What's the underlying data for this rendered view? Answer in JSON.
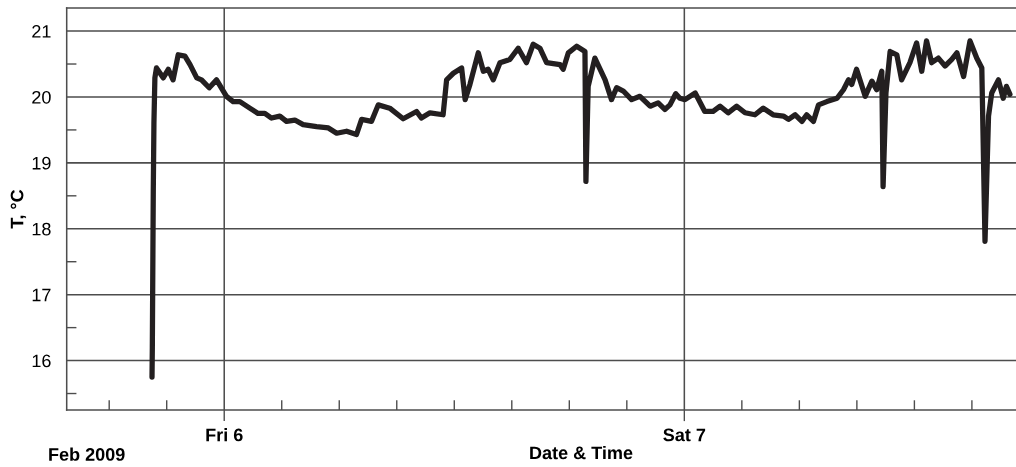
{
  "chart_data": {
    "type": "line",
    "xlabel": "Date & Time",
    "ylabel": "T, °C",
    "annotations": [
      "Feb 2009"
    ],
    "x": [
      "2009-02-05T20:14",
      "2009-02-05T20:15",
      "2009-02-05T20:18",
      "2009-02-05T20:20",
      "2009-02-05T20:23",
      "2009-02-05T20:28",
      "2009-02-05T20:49",
      "2009-02-05T21:05",
      "2009-02-05T21:20",
      "2009-02-05T21:36",
      "2009-02-05T21:57",
      "2009-02-05T22:13",
      "2009-02-05T22:34",
      "2009-02-05T22:49",
      "2009-02-05T23:13",
      "2009-02-05T23:36",
      "2009-02-06T00:07",
      "2009-02-06T00:28",
      "2009-02-06T00:49",
      "2009-02-06T01:20",
      "2009-02-06T01:46",
      "2009-02-06T02:07",
      "2009-02-06T02:28",
      "2009-02-06T02:54",
      "2009-02-06T03:15",
      "2009-02-06T03:41",
      "2009-02-06T04:07",
      "2009-02-06T04:49",
      "2009-02-06T05:26",
      "2009-02-06T05:52",
      "2009-02-06T06:23",
      "2009-02-06T06:54",
      "2009-02-06T07:10",
      "2009-02-06T07:41",
      "2009-02-06T08:02",
      "2009-02-06T08:38",
      "2009-02-06T09:20",
      "2009-02-06T10:02",
      "2009-02-06T10:17",
      "2009-02-06T10:44",
      "2009-02-06T11:25",
      "2009-02-06T11:36",
      "2009-02-06T11:57",
      "2009-02-06T12:23",
      "2009-02-06T12:34",
      "2009-02-06T12:49",
      "2009-02-06T13:15",
      "2009-02-06T13:31",
      "2009-02-06T13:46",
      "2009-02-06T14:02",
      "2009-02-06T14:23",
      "2009-02-06T14:54",
      "2009-02-06T15:20",
      "2009-02-06T15:46",
      "2009-02-06T16:07",
      "2009-02-06T16:28",
      "2009-02-06T16:49",
      "2009-02-06T17:31",
      "2009-02-06T17:41",
      "2009-02-06T17:57",
      "2009-02-06T18:23",
      "2009-02-06T18:49",
      "2009-02-06T18:52",
      "2009-02-06T18:59",
      "2009-02-06T19:20",
      "2009-02-06T19:52",
      "2009-02-06T20:12",
      "2009-02-06T20:28",
      "2009-02-06T20:49",
      "2009-02-06T21:15",
      "2009-02-06T21:41",
      "2009-02-06T22:13",
      "2009-02-06T22:38",
      "2009-02-06T22:59",
      "2009-02-06T23:15",
      "2009-02-06T23:33",
      "2009-02-06T23:46",
      "2009-02-07T00:02",
      "2009-02-07T00:34",
      "2009-02-07T01:04",
      "2009-02-07T01:30",
      "2009-02-07T01:52",
      "2009-02-07T02:17",
      "2009-02-07T02:44",
      "2009-02-07T03:10",
      "2009-02-07T03:41",
      "2009-02-07T04:07",
      "2009-02-07T04:38",
      "2009-02-07T05:10",
      "2009-02-07T05:26",
      "2009-02-07T05:47",
      "2009-02-07T06:08",
      "2009-02-07T06:23",
      "2009-02-07T06:44",
      "2009-02-07T07:00",
      "2009-02-07T07:26",
      "2009-02-07T07:58",
      "2009-02-07T08:18",
      "2009-02-07T08:34",
      "2009-02-07T08:44",
      "2009-02-07T08:59",
      "2009-02-07T09:26",
      "2009-02-07T09:47",
      "2009-02-07T10:02",
      "2009-02-07T10:18",
      "2009-02-07T10:22",
      "2009-02-07T10:31",
      "2009-02-07T10:44",
      "2009-02-07T11:05",
      "2009-02-07T11:20",
      "2009-02-07T11:46",
      "2009-02-07T12:07",
      "2009-02-07T12:23",
      "2009-02-07T12:38",
      "2009-02-07T12:54",
      "2009-02-07T13:15",
      "2009-02-07T13:36",
      "2009-02-07T13:57",
      "2009-02-07T14:13",
      "2009-02-07T14:34",
      "2009-02-07T14:54",
      "2009-02-07T15:15",
      "2009-02-07T15:31",
      "2009-02-07T15:41",
      "2009-02-07T15:52",
      "2009-02-07T16:02",
      "2009-02-07T16:23",
      "2009-02-07T16:38",
      "2009-02-07T16:48",
      "2009-02-07T16:59"
    ],
    "series": [
      {
        "color": "#231f20",
        "values": [
          15.75,
          16.2,
          18.59,
          19.6,
          20.29,
          20.44,
          20.29,
          20.42,
          20.26,
          20.64,
          20.62,
          20.49,
          20.29,
          20.26,
          20.14,
          20.26,
          20.01,
          19.93,
          19.93,
          19.83,
          19.75,
          19.75,
          19.68,
          19.71,
          19.63,
          19.65,
          19.58,
          19.55,
          19.53,
          19.45,
          19.48,
          19.43,
          19.66,
          19.63,
          19.88,
          19.83,
          19.67,
          19.78,
          19.68,
          19.76,
          19.73,
          20.26,
          20.36,
          20.44,
          19.96,
          20.19,
          20.67,
          20.39,
          20.42,
          20.26,
          20.52,
          20.57,
          20.74,
          20.52,
          20.8,
          20.74,
          20.52,
          20.49,
          20.42,
          20.67,
          20.77,
          20.69,
          18.72,
          20.16,
          20.59,
          20.26,
          19.96,
          20.14,
          20.09,
          19.96,
          20.01,
          19.86,
          19.91,
          19.81,
          19.88,
          20.05,
          19.98,
          19.96,
          20.06,
          19.78,
          19.78,
          19.86,
          19.76,
          19.86,
          19.76,
          19.73,
          19.83,
          19.73,
          19.71,
          19.66,
          19.73,
          19.63,
          19.73,
          19.63,
          19.88,
          19.93,
          19.98,
          20.11,
          20.26,
          20.19,
          20.42,
          20.01,
          20.24,
          20.11,
          20.39,
          18.64,
          20.06,
          20.69,
          20.64,
          20.26,
          20.52,
          20.82,
          20.39,
          20.85,
          20.52,
          20.59,
          20.47,
          20.57,
          20.67,
          20.31,
          20.85,
          20.59,
          20.44,
          17.81,
          19.71,
          20.06,
          20.26,
          19.98,
          20.16,
          20.04
        ]
      }
    ],
    "xlim": [
      "2009-02-05T15:47",
      "2009-02-07T17:18"
    ],
    "xticks": [
      {
        "value": "2009-02-05T18:00",
        "label": null
      },
      {
        "value": "2009-02-05T21:00",
        "label": null
      },
      {
        "value": "2009-02-06T00:00",
        "label": "Fri 6"
      },
      {
        "value": "2009-02-06T03:00",
        "label": null
      },
      {
        "value": "2009-02-06T06:00",
        "label": null
      },
      {
        "value": "2009-02-06T09:00",
        "label": null
      },
      {
        "value": "2009-02-06T12:00",
        "label": null
      },
      {
        "value": "2009-02-06T15:00",
        "label": null
      },
      {
        "value": "2009-02-06T18:00",
        "label": null
      },
      {
        "value": "2009-02-06T21:00",
        "label": null
      },
      {
        "value": "2009-02-07T00:00",
        "label": "Sat 7"
      },
      {
        "value": "2009-02-07T03:00",
        "label": null
      },
      {
        "value": "2009-02-07T06:00",
        "label": null
      },
      {
        "value": "2009-02-07T09:00",
        "label": null
      },
      {
        "value": "2009-02-07T12:00",
        "label": null
      },
      {
        "value": "2009-02-07T15:00",
        "label": null
      }
    ],
    "ylim": [
      15.25,
      21.35
    ],
    "yticks": [
      {
        "value": 15.5,
        "label": null
      },
      16,
      {
        "value": 16.5,
        "label": null
      },
      17,
      {
        "value": 17.5,
        "label": null
      },
      18,
      {
        "value": 18.5,
        "label": null
      },
      19,
      {
        "value": 19.5,
        "label": null
      },
      20,
      {
        "value": 20.5,
        "label": null
      },
      21
    ],
    "grid": true,
    "line_style": "solid"
  }
}
